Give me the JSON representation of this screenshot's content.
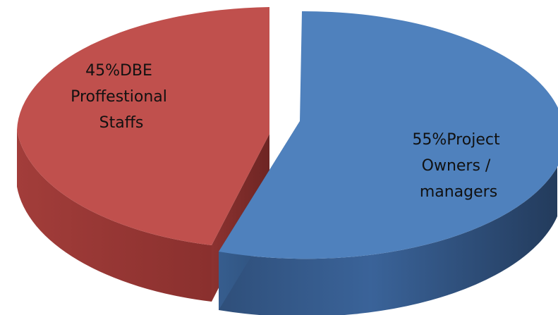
{
  "chart_data": {
    "type": "pie",
    "title": "",
    "slices": [
      {
        "label": "45%DBE Proffestional Staffs",
        "label_lines": [
          "45%DBE",
          "Proffestional",
          "Staffs"
        ],
        "value": 45,
        "color": "#c0504d",
        "exploded": true
      },
      {
        "label": "55%Project Owners / managers",
        "label_lines": [
          "55%Project",
          "Owners /",
          "managers"
        ],
        "value": 55,
        "color": "#4f81bd",
        "exploded": true
      }
    ],
    "style": "3d-exploded",
    "legend": "none"
  }
}
